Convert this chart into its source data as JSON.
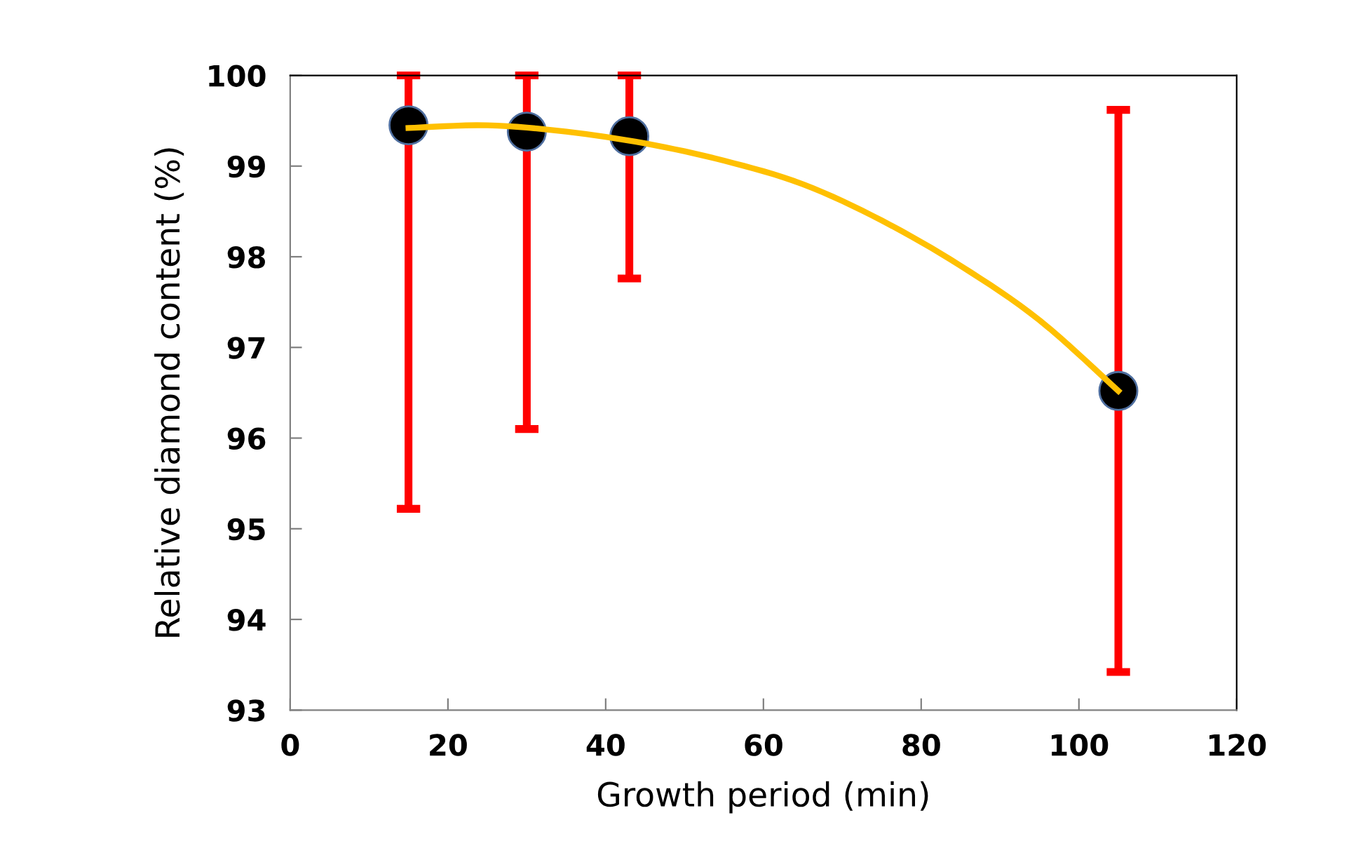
{
  "chart_data": {
    "type": "scatter",
    "xlabel": "Growth period (min)",
    "ylabel": "Relative diamond content (%)",
    "xlim": [
      0,
      120
    ],
    "xticks": [
      0,
      20,
      40,
      60,
      80,
      100,
      120
    ],
    "ylim": [
      93,
      100
    ],
    "yticks": [
      93,
      94,
      95,
      96,
      97,
      98,
      99,
      100
    ],
    "grid": false,
    "marker": "circle",
    "series": [
      {
        "color": "#000000",
        "x": [
          15,
          30,
          43,
          105
        ],
        "values": [
          99.45,
          99.38,
          99.33,
          96.52
        ],
        "errors": [
          [
            95.22,
            100
          ],
          [
            96.1,
            100
          ],
          [
            97.76,
            100
          ],
          [
            93.42,
            99.62
          ]
        ]
      },
      {
        "type": "line",
        "color": "#ffc000",
        "marker": "none",
        "line_style": "solid",
        "x": [
          15,
          25,
          35,
          45,
          55,
          65,
          75,
          85,
          95,
          105
        ],
        "values": [
          99.42,
          99.45,
          99.38,
          99.25,
          99.06,
          98.8,
          98.4,
          97.9,
          97.3,
          96.52
        ]
      }
    ]
  }
}
